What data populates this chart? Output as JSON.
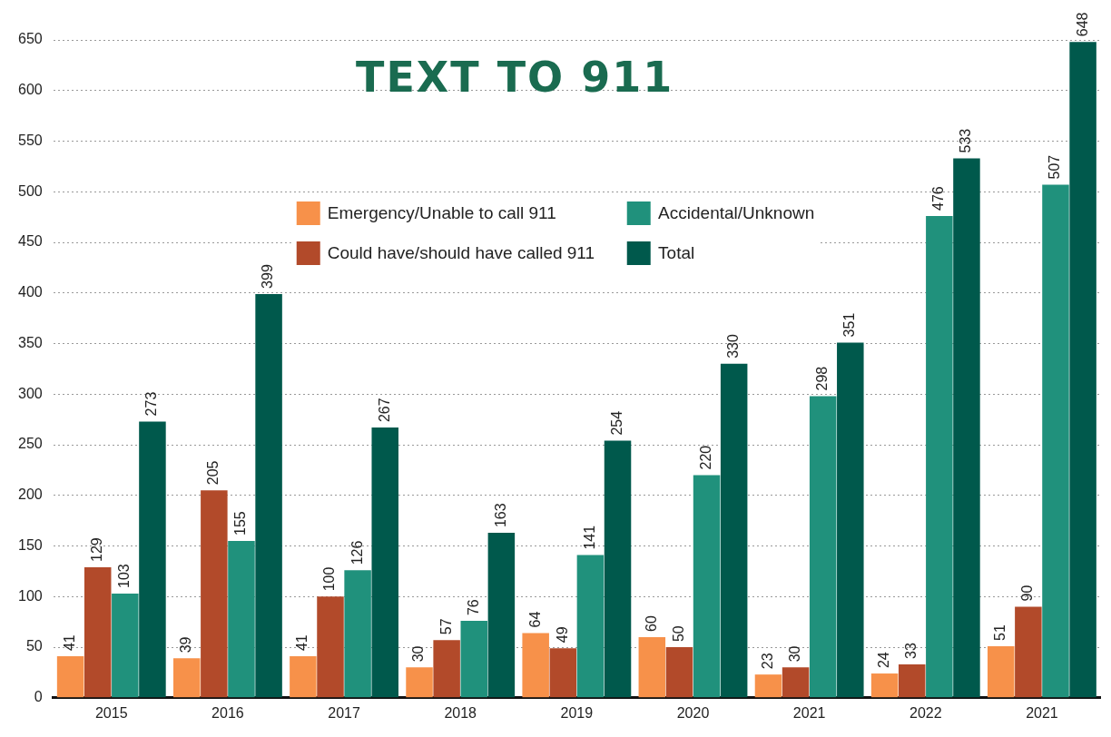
{
  "chart_data": {
    "type": "bar",
    "title": "TEXT TO 911",
    "categories": [
      "2015",
      "2016",
      "2017",
      "2018",
      "2019",
      "2020",
      "2021",
      "2022",
      "2021"
    ],
    "series": [
      {
        "name": "Emergency/Unable to call 911",
        "color": "#f7914a",
        "values": [
          41,
          39,
          41,
          30,
          64,
          60,
          23,
          24,
          51
        ]
      },
      {
        "name": "Could have/should have called 911",
        "color": "#b24a2a",
        "values": [
          129,
          205,
          100,
          57,
          49,
          50,
          30,
          33,
          90
        ]
      },
      {
        "name": "Accidental/Unknown",
        "color": "#20917c",
        "values": [
          103,
          155,
          126,
          76,
          141,
          220,
          298,
          476,
          507
        ]
      },
      {
        "name": "Total",
        "color": "#00594c",
        "values": [
          273,
          399,
          267,
          163,
          254,
          330,
          351,
          533,
          648
        ]
      }
    ],
    "ylim": [
      0,
      650
    ],
    "yticks": [
      0,
      50,
      100,
      150,
      200,
      250,
      300,
      350,
      400,
      450,
      500,
      550,
      600,
      650
    ],
    "grid": "y",
    "legend": "top",
    "data_labels": true
  }
}
